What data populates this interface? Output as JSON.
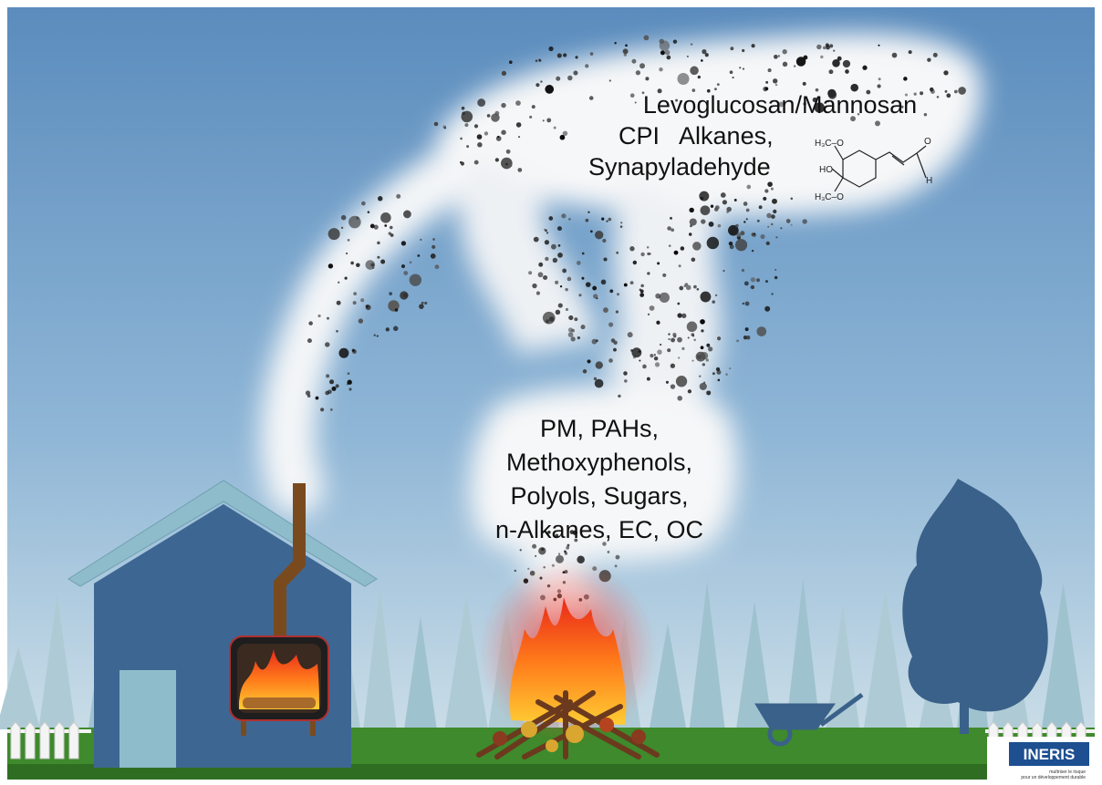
{
  "upper_cloud": {
    "lines": [
      "Levoglucosan/Mannosan",
      "CPI   Alkanes,",
      "Synapyladehyde"
    ]
  },
  "molecule": {
    "labels": [
      "H₃C–O",
      "HO",
      "H₃C–O",
      "O",
      "H"
    ]
  },
  "lower_cloud": {
    "lines": [
      "PM, PAHs,",
      "Methoxyphenols,",
      "Polyols, Sugars,",
      "n-Alkanes, EC, OC"
    ]
  },
  "logo": {
    "name": "INERIS",
    "tagline": [
      "maîtriser le risque",
      "pour un développement durable"
    ]
  }
}
